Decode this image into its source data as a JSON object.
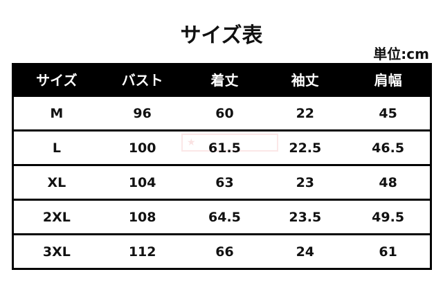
{
  "title": "サイズ表",
  "unit": "単位:cm",
  "headers": [
    "サイズ",
    "バスト",
    "着丈",
    "袖丈",
    "肩幅"
  ],
  "rows": [
    [
      "M",
      "96",
      "60",
      "22",
      "45"
    ],
    [
      "L",
      "100",
      "61.5",
      "22.5",
      "46.5"
    ],
    [
      "XL",
      "104",
      "63",
      "23",
      "48"
    ],
    [
      "2XL",
      "108",
      "64.5",
      "23.5",
      "49.5"
    ],
    [
      "3XL",
      "112",
      "66",
      "24",
      "61"
    ]
  ],
  "colors": {
    "header_bg": "#000000",
    "header_text": "#ffffff",
    "watermark": "#dc3c3c"
  }
}
